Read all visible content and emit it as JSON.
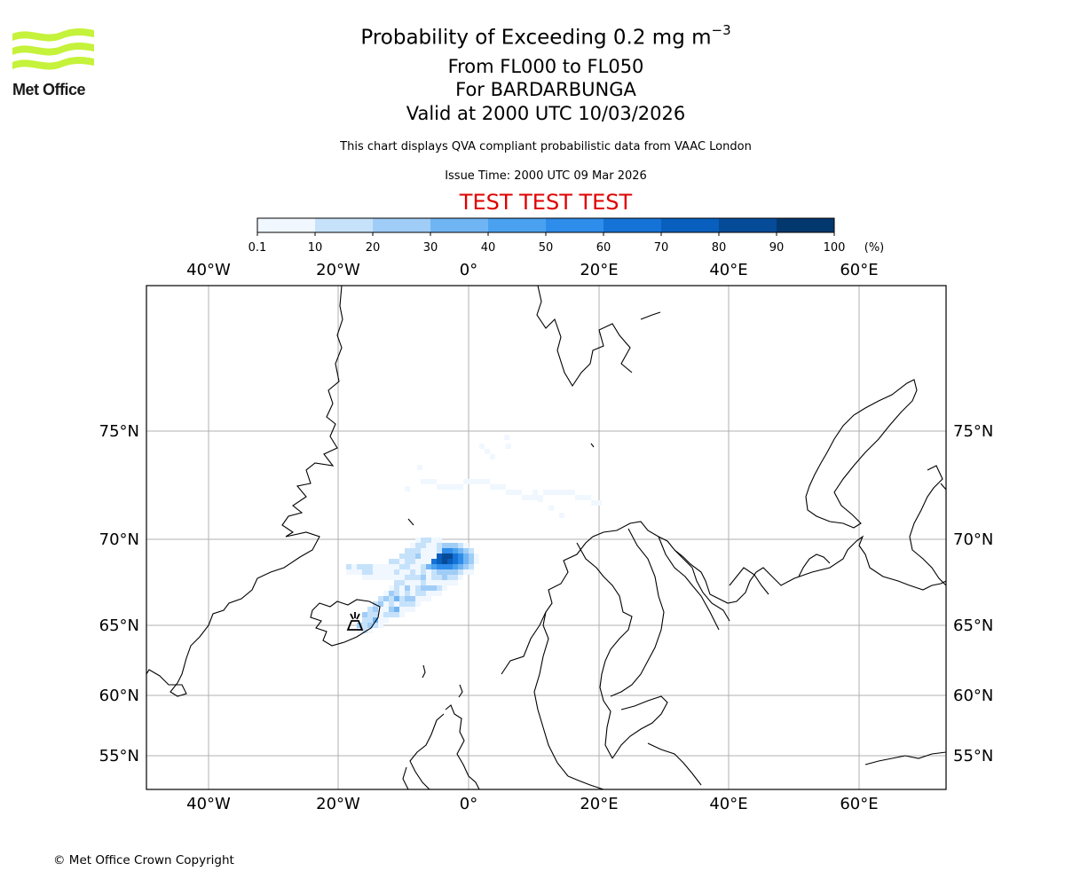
{
  "header": {
    "logo_text": "Met Office",
    "title_main": "Probability of Exceeding 0.2 mg m",
    "title_exp": "−3",
    "subtitle_levels": "From FL000 to FL050",
    "subtitle_volcano": "For BARDARBUNGA",
    "subtitle_valid": "Valid at 2000 UTC 10/03/2026",
    "note": "This chart displays QVA compliant probabilistic data from VAAC London",
    "issue_time": "Issue Time: 2000 UTC 09 Mar 2026",
    "test_banner": "TEST TEST TEST"
  },
  "colorbar": {
    "ticks": [
      "0.1",
      "10",
      "20",
      "30",
      "40",
      "50",
      "60",
      "70",
      "80",
      "90",
      "100"
    ],
    "unit": "(%)",
    "colors": [
      "#f0f7ff",
      "#c6e2fb",
      "#9fcdf7",
      "#70b5f3",
      "#4aa1ef",
      "#2e8cea",
      "#1573d7",
      "#085fbd",
      "#054b98",
      "#03386f",
      "#02244a"
    ]
  },
  "map": {
    "lon_labels": [
      "40°W",
      "20°W",
      "0°",
      "20°E",
      "40°E",
      "60°E"
    ],
    "lat_labels": [
      "75°N",
      "70°N",
      "65°N",
      "60°N",
      "55°N"
    ],
    "volcano": "BARDARBUNGA",
    "plume_max_probability_percent": 100
  },
  "footer": {
    "copyright": "© Met Office Crown Copyright"
  }
}
